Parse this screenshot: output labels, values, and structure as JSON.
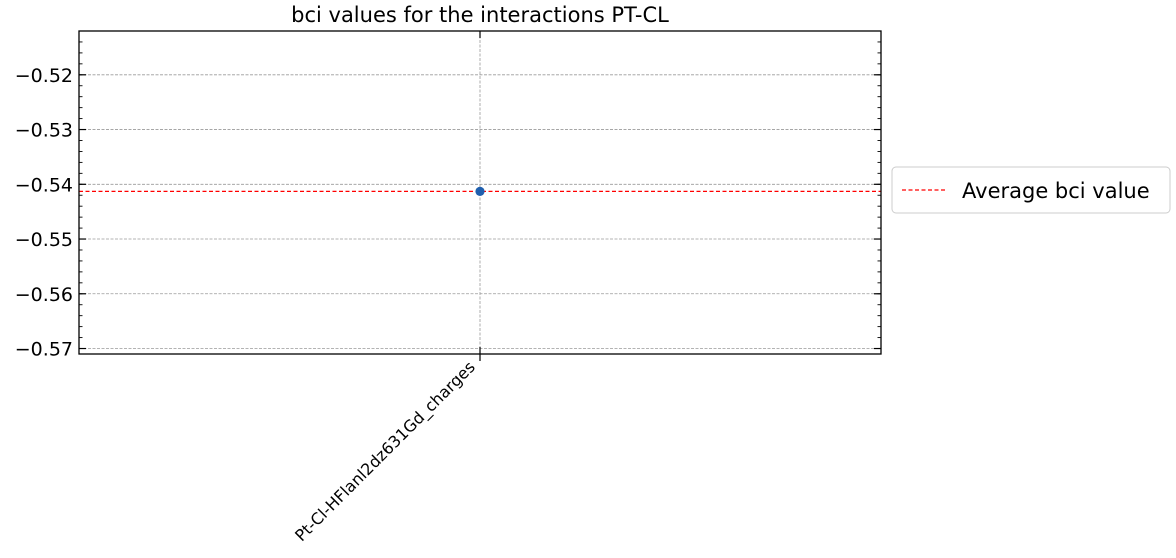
{
  "chart_data": {
    "type": "scatter",
    "title": "bci values for the interactions PT-CL",
    "xlabel": "",
    "ylabel": "",
    "categories": [
      "Pt-Cl-HFlanl2dz631Gd_charges"
    ],
    "series": [
      {
        "values": [
          -0.5413
        ],
        "color": "#1f5fae"
      }
    ],
    "reference_lines": [
      {
        "name": "Average bci value",
        "value": -0.5413,
        "color": "#ff0000",
        "style": "dashed"
      }
    ],
    "yticks": [
      -0.52,
      -0.53,
      -0.54,
      -0.55,
      -0.56,
      -0.57
    ],
    "ytick_labels": [
      "−0.52",
      "−0.53",
      "−0.54",
      "−0.55",
      "−0.56",
      "−0.57"
    ],
    "ylim": [
      -0.571,
      -0.512
    ],
    "grid": true,
    "legend_position": "outside-right"
  }
}
